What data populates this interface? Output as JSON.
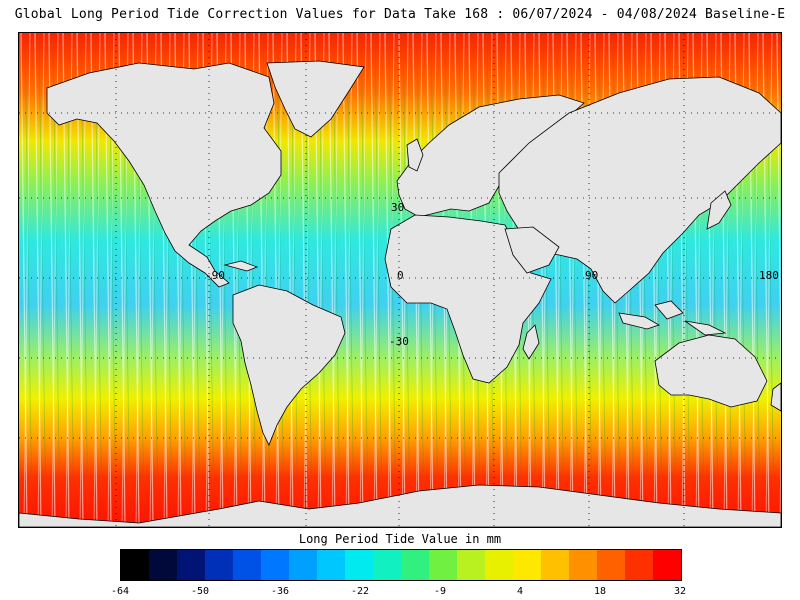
{
  "title": "Global Long Period Tide Correction Values for Data Take 168 : 06/07/2024 - 04/08/2024 Baseline-E",
  "colorbar": {
    "title": "Long Period Tide Value in mm",
    "ticks": [
      "-64",
      "-50",
      "-36",
      "-22",
      "-9",
      "4",
      "18",
      "32"
    ]
  },
  "map": {
    "grid_labels": {
      "lat_30": "30",
      "lat_minus_30": "-30",
      "lon_minus_90": "-90",
      "lon_0": "0",
      "lon_90": "90",
      "lon_180": "180"
    },
    "land_color": "#e6e6e6",
    "coastline_color": "#000000"
  },
  "colors": {
    "scale": [
      "#000000",
      "#000a3a",
      "#001476",
      "#0030b8",
      "#0052e6",
      "#0077ff",
      "#00a0ff",
      "#00c8ff",
      "#00eaf0",
      "#10f0c0",
      "#30f080",
      "#70f040",
      "#b8f020",
      "#e8f000",
      "#ffe800",
      "#ffc000",
      "#ff9000",
      "#ff6000",
      "#ff3000",
      "#ff0000"
    ]
  }
}
